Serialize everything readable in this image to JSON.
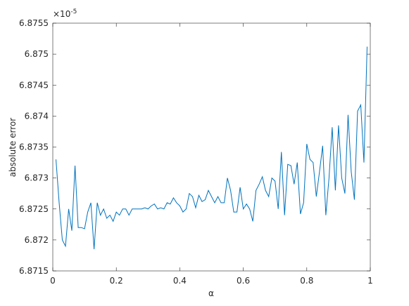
{
  "chart_data": {
    "type": "line",
    "x_label": "α",
    "y_label": "absolute error",
    "y_exponent_label": "×10",
    "y_exponent_power": "-5",
    "x": [
      0.01,
      0.02,
      0.03,
      0.04,
      0.05,
      0.06,
      0.07,
      0.08,
      0.09,
      0.1,
      0.11,
      0.12,
      0.13,
      0.14,
      0.15,
      0.16,
      0.17,
      0.18,
      0.19,
      0.2,
      0.21,
      0.22,
      0.23,
      0.24,
      0.25,
      0.26,
      0.27,
      0.28,
      0.29,
      0.3,
      0.31,
      0.32,
      0.33,
      0.34,
      0.35,
      0.36,
      0.37,
      0.38,
      0.39,
      0.4,
      0.41,
      0.42,
      0.43,
      0.44,
      0.45,
      0.46,
      0.47,
      0.48,
      0.49,
      0.5,
      0.51,
      0.52,
      0.53,
      0.54,
      0.55,
      0.56,
      0.57,
      0.58,
      0.59,
      0.6,
      0.61,
      0.62,
      0.63,
      0.64,
      0.65,
      0.66,
      0.67,
      0.68,
      0.69,
      0.7,
      0.71,
      0.72,
      0.73,
      0.74,
      0.75,
      0.76,
      0.77,
      0.78,
      0.79,
      0.8,
      0.81,
      0.82,
      0.83,
      0.84,
      0.85,
      0.86,
      0.87,
      0.88,
      0.89,
      0.9,
      0.91,
      0.92,
      0.93,
      0.94,
      0.95,
      0.96,
      0.97,
      0.98,
      0.99
    ],
    "series": [
      {
        "color": "#0072bd",
        "values": [
          6.8733,
          6.8726,
          6.872,
          6.8719,
          6.8725,
          6.87215,
          6.8732,
          6.8722,
          6.8722,
          6.87218,
          6.87245,
          6.8726,
          6.87185,
          6.8726,
          6.8724,
          6.8725,
          6.87235,
          6.8724,
          6.8723,
          6.87245,
          6.8724,
          6.8725,
          6.8725,
          6.8724,
          6.8725,
          6.8725,
          6.8725,
          6.8725,
          6.87252,
          6.8725,
          6.87255,
          6.87258,
          6.8725,
          6.87252,
          6.8725,
          6.8726,
          6.87258,
          6.87268,
          6.8726,
          6.87255,
          6.87245,
          6.8725,
          6.87275,
          6.8727,
          6.87252,
          6.87272,
          6.87262,
          6.87265,
          6.8728,
          6.8727,
          6.8726,
          6.8727,
          6.8726,
          6.8726,
          6.873,
          6.8728,
          6.87245,
          6.87245,
          6.87285,
          6.8725,
          6.87258,
          6.8725,
          6.8723,
          6.8728,
          6.8729,
          6.87302,
          6.8728,
          6.8727,
          6.873,
          6.87295,
          6.8725,
          6.87342,
          6.8724,
          6.87322,
          6.8732,
          6.8729,
          6.87325,
          6.87242,
          6.8726,
          6.87355,
          6.8733,
          6.87325,
          6.8727,
          6.8731,
          6.87352,
          6.8724,
          6.873,
          6.87382,
          6.8728,
          6.87385,
          6.873,
          6.87275,
          6.87402,
          6.8731,
          6.87265,
          6.87408,
          6.87418,
          6.87325,
          6.87512
        ]
      }
    ],
    "xlim": [
      0,
      1
    ],
    "xticks": [
      0,
      0.2,
      0.4,
      0.6,
      0.8,
      1
    ],
    "ylim": [
      6.8715,
      6.8755
    ],
    "yticks": [
      6.8715,
      6.872,
      6.8725,
      6.873,
      6.8735,
      6.874,
      6.8745,
      6.875,
      6.8755
    ]
  }
}
